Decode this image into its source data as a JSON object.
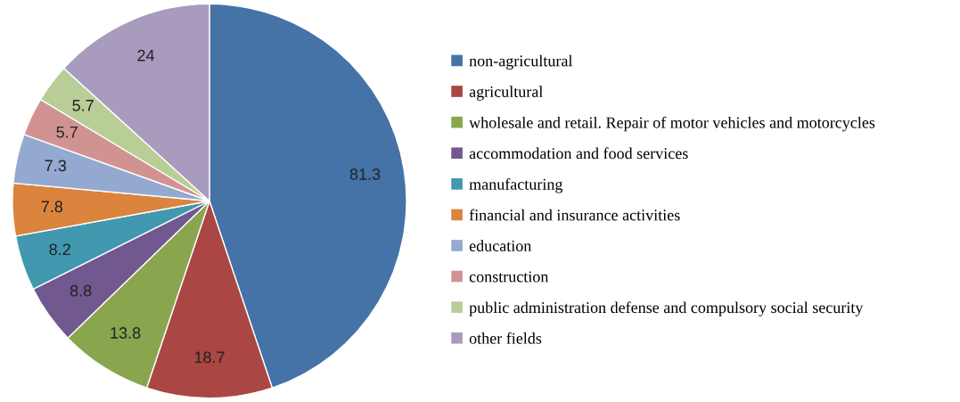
{
  "chart_data": {
    "type": "pie",
    "categories": [
      "non-agricultural",
      "agricultural",
      "wholesale and retail. Repair of motor vehicles and motorcycles",
      "accommodation and food services",
      "manufacturing",
      "financial and insurance activities",
      "education",
      "construction",
      "public administration defense and compulsory social security",
      "other fields"
    ],
    "values": [
      81.3,
      18.7,
      13.8,
      8.8,
      8.2,
      7.8,
      7.3,
      5.7,
      5.7,
      24
    ],
    "colors": [
      "#4572a7",
      "#aa4643",
      "#89a54e",
      "#71588f",
      "#4198af",
      "#db843d",
      "#93a9cf",
      "#d19392",
      "#b9cd96",
      "#a99bbd"
    ],
    "data_labels": true,
    "legend": "right"
  }
}
